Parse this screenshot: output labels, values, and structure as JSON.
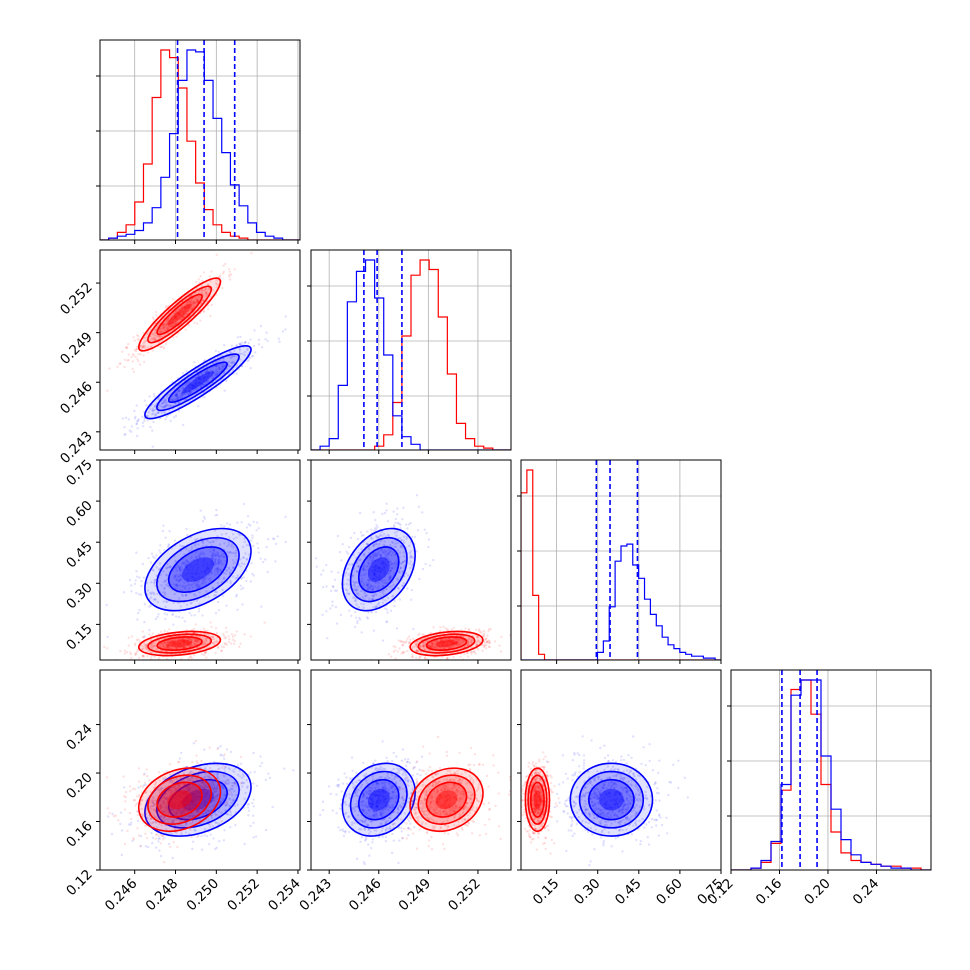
{
  "chart_data": {
    "type": "corner",
    "title": "",
    "colors": {
      "series_a": "#ff0000",
      "series_b": "#0000ff",
      "grid": "#b0b0b0"
    },
    "grid": true,
    "series": [
      {
        "color": "#0000ff",
        "means": [
          0.2491,
          0.246,
          0.35,
          0.178
        ],
        "sd": [
          0.0013,
          0.0011,
          0.075,
          0.015
        ],
        "corr": [
          [
            1,
            0.9,
            0.45,
            0.35
          ],
          [
            0.9,
            1,
            0.35,
            0.2
          ],
          [
            0.45,
            0.35,
            1,
            0.0
          ],
          [
            0.35,
            0.2,
            0.0,
            1
          ]
        ],
        "hist": [
          [
            0,
            1,
            2,
            3,
            5,
            9,
            17,
            33,
            56,
            84,
            100,
            99,
            84,
            64,
            46,
            29,
            18,
            9,
            4,
            2,
            1,
            0,
            0
          ],
          [
            0,
            2,
            6,
            34,
            78,
            94,
            100,
            80,
            50,
            18,
            7,
            3,
            0,
            0,
            0,
            0,
            0,
            0,
            0,
            0,
            0,
            0
          ],
          [
            0,
            0,
            0,
            0,
            0,
            0,
            0,
            0,
            0,
            0,
            0,
            0,
            0,
            4,
            10,
            28,
            52,
            60,
            61,
            50,
            43,
            32,
            24,
            18,
            12,
            8,
            6,
            4,
            3,
            2,
            2,
            1,
            1,
            0
          ],
          [
            0,
            0,
            1,
            5,
            15,
            45,
            92,
            100,
            100,
            60,
            32,
            16,
            8,
            4,
            3,
            2,
            1,
            1,
            0,
            0
          ]
        ],
        "quantiles": [
          [
            0.2481,
            0.2494,
            0.2509
          ],
          [
            0.2451,
            0.2459,
            0.2474
          ],
          [
            0.295,
            0.345,
            0.445
          ],
          [
            0.162,
            0.177,
            0.191
          ]
        ]
      },
      {
        "color": "#ff0000",
        "means": [
          0.2482,
          0.2501,
          0.08,
          0.178
        ],
        "sd": [
          0.001,
          0.0011,
          0.022,
          0.013
        ],
        "corr": [
          [
            1,
            0.9,
            0.3,
            0.25
          ],
          [
            0.9,
            1,
            0.3,
            0.2
          ],
          [
            0.3,
            0.3,
            1,
            0.0
          ],
          [
            0.25,
            0.2,
            0.0,
            1
          ]
        ],
        "hist": [
          [
            0,
            1,
            4,
            8,
            20,
            40,
            75,
            100,
            96,
            80,
            52,
            30,
            16,
            8,
            4,
            2,
            1,
            0,
            0,
            0,
            0,
            0,
            0
          ],
          [
            0,
            0,
            0,
            0,
            0,
            0,
            0,
            2,
            8,
            25,
            60,
            92,
            100,
            95,
            70,
            40,
            14,
            6,
            2,
            1,
            0,
            0
          ],
          [
            88,
            100,
            34,
            3,
            0,
            0,
            0,
            0,
            0,
            0,
            0,
            0,
            0,
            0,
            0,
            0,
            0,
            0,
            0,
            0,
            0,
            0,
            0,
            0,
            0,
            0,
            0,
            0,
            0,
            0,
            0,
            0,
            0,
            0
          ],
          [
            0,
            0,
            1,
            4,
            14,
            42,
            95,
            100,
            82,
            45,
            20,
            9,
            5,
            4,
            3,
            2,
            2,
            1,
            1,
            0
          ]
        ]
      }
    ],
    "params": [
      {
        "range": [
          0.2443,
          0.2541
        ],
        "ticks": [
          "0.246",
          "0.248",
          "0.250",
          "0.252",
          "0.254"
        ],
        "tick_values": [
          0.246,
          0.248,
          0.25,
          0.252,
          0.254
        ]
      },
      {
        "range": [
          0.2419,
          0.254
        ],
        "ticks": [
          "0.243",
          "0.246",
          "0.249",
          "0.252"
        ],
        "tick_values": [
          0.243,
          0.246,
          0.249,
          0.252
        ]
      },
      {
        "range": [
          0.02,
          0.75
        ],
        "ticks": [
          "0.15",
          "0.30",
          "0.45",
          "0.60",
          "0.75"
        ],
        "tick_values": [
          0.15,
          0.3,
          0.45,
          0.6,
          0.75
        ]
      },
      {
        "range": [
          0.12,
          0.285
        ],
        "ticks": [
          "0.12",
          "0.16",
          "0.20",
          "0.24"
        ],
        "tick_values": [
          0.12,
          0.16,
          0.2,
          0.24
        ]
      }
    ]
  }
}
